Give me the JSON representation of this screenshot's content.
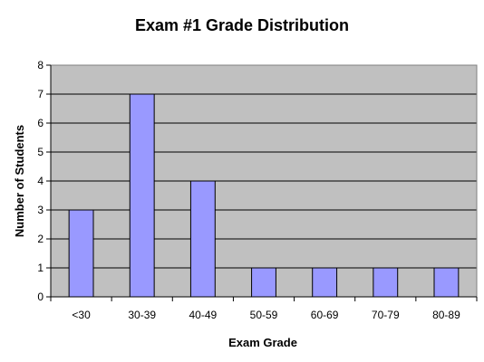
{
  "chart_data": {
    "type": "bar",
    "title": "Exam #1 Grade Distribution",
    "xlabel": "Exam Grade",
    "ylabel": "Number of Students",
    "categories": [
      "<30",
      "30-39",
      "40-49",
      "50-59",
      "60-69",
      "70-79",
      "80-89"
    ],
    "values": [
      3,
      7,
      4,
      1,
      1,
      1,
      1
    ],
    "ylim": [
      0,
      8
    ],
    "yticks": [
      0,
      1,
      2,
      3,
      4,
      5,
      6,
      7,
      8
    ],
    "grid": true,
    "legend": "none"
  },
  "colors": {
    "plot_background": "#c0c0c0",
    "bar_fill": "#9999ff",
    "bar_stroke": "#000000",
    "gridline": "#000000"
  }
}
